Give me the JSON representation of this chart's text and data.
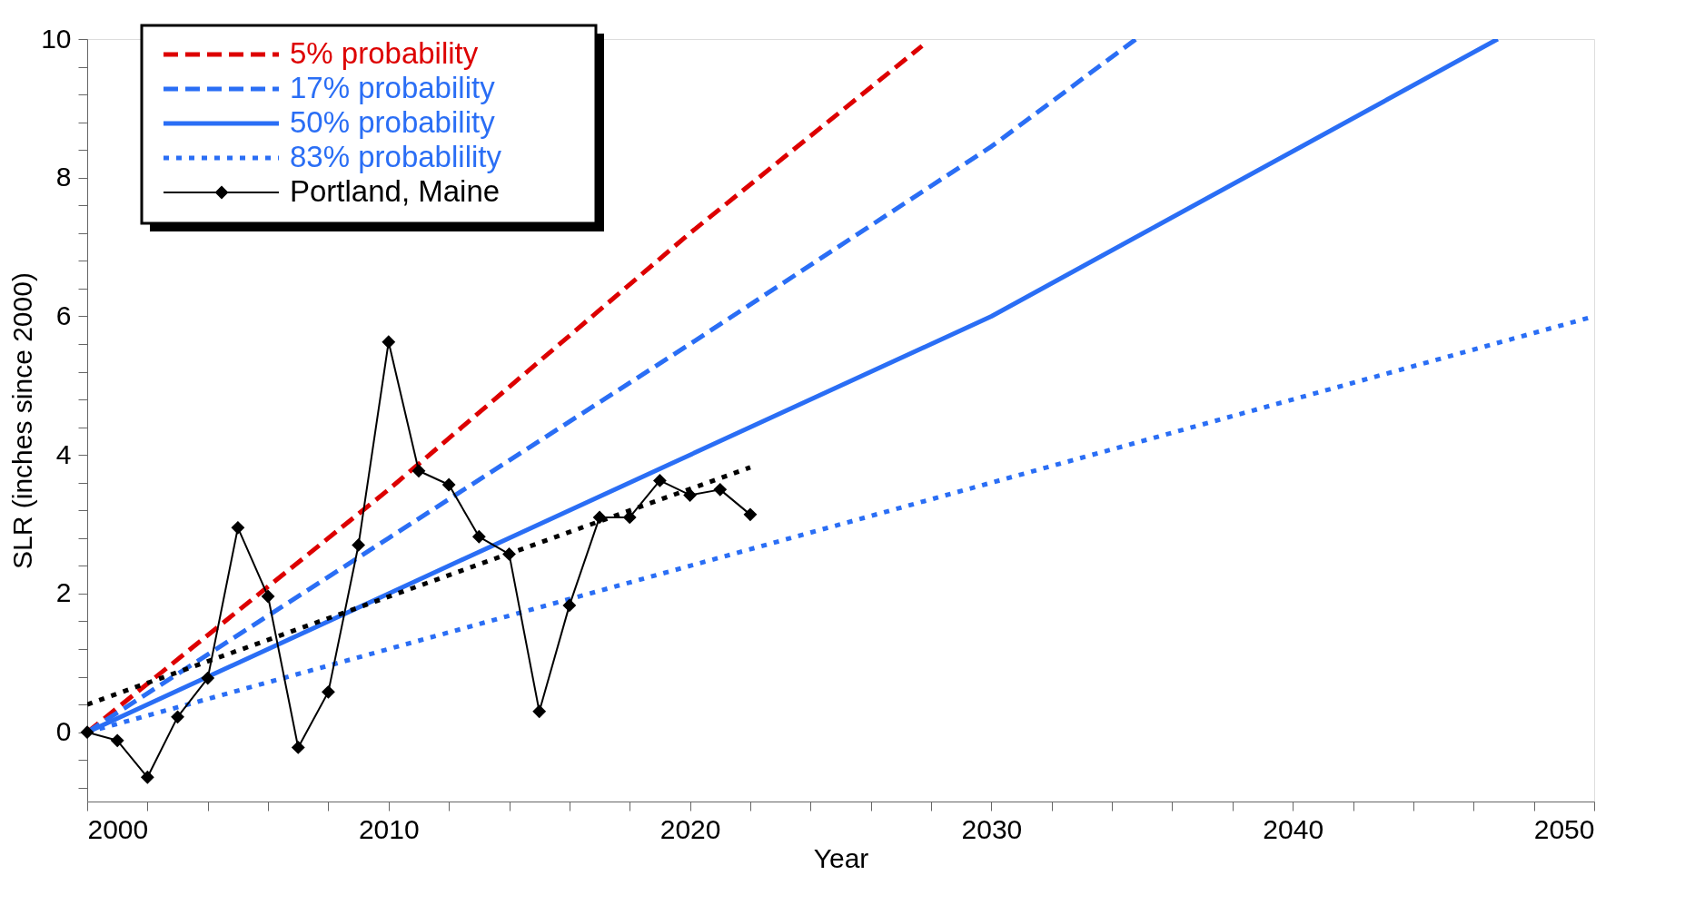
{
  "chart_data": {
    "type": "line",
    "xlabel": "Year",
    "ylabel": "SLR (inches since 2000)",
    "xlim": [
      2000,
      2050
    ],
    "ylim": [
      -1,
      10
    ],
    "xticks": [
      2000,
      {
        "value": 2002,
        "label": null
      },
      {
        "value": 2004,
        "label": null
      },
      {
        "value": 2006,
        "label": null
      },
      {
        "value": 2008,
        "label": null
      },
      2010,
      {
        "value": 2012,
        "label": null
      },
      {
        "value": 2014,
        "label": null
      },
      {
        "value": 2016,
        "label": null
      },
      {
        "value": 2018,
        "label": null
      },
      2020,
      {
        "value": 2022,
        "label": null
      },
      {
        "value": 2024,
        "label": null
      },
      {
        "value": 2026,
        "label": null
      },
      {
        "value": 2028,
        "label": null
      },
      2030,
      {
        "value": 2032,
        "label": null
      },
      {
        "value": 2034,
        "label": null
      },
      {
        "value": 2036,
        "label": null
      },
      {
        "value": 2038,
        "label": null
      },
      2040,
      {
        "value": 2042,
        "label": null
      },
      {
        "value": 2044,
        "label": null
      },
      {
        "value": 2046,
        "label": null
      },
      {
        "value": 2048,
        "label": null
      },
      2050
    ],
    "yticks": [
      {
        "value": -0.8,
        "label": null
      },
      {
        "value": -0.4,
        "label": null
      },
      0,
      {
        "value": 0.4,
        "label": null
      },
      {
        "value": 0.8,
        "label": null
      },
      {
        "value": 1.2,
        "label": null
      },
      {
        "value": 1.6,
        "label": null
      },
      2,
      {
        "value": 2.4,
        "label": null
      },
      {
        "value": 2.8,
        "label": null
      },
      {
        "value": 3.2,
        "label": null
      },
      {
        "value": 3.6,
        "label": null
      },
      4,
      {
        "value": 4.4,
        "label": null
      },
      {
        "value": 4.8,
        "label": null
      },
      {
        "value": 5.2,
        "label": null
      },
      {
        "value": 5.6,
        "label": null
      },
      6,
      {
        "value": 6.4,
        "label": null
      },
      {
        "value": 6.8,
        "label": null
      },
      {
        "value": 7.2,
        "label": null
      },
      {
        "value": 7.6,
        "label": null
      },
      8,
      {
        "value": 8.4,
        "label": null
      },
      {
        "value": 8.8,
        "label": null
      },
      {
        "value": 9.2,
        "label": null
      },
      {
        "value": 9.6,
        "label": null
      },
      10
    ],
    "grid": false,
    "legend": "top left",
    "series": [
      {
        "name": "5% probability",
        "color": "#dd0000",
        "line_style": "dashed",
        "marker": "none",
        "x": [
          2000,
          2010,
          2020,
          2027.7
        ],
        "values": [
          0,
          3.5,
          7.2,
          9.9
        ]
      },
      {
        "name": "17% probability",
        "color": "#2a6ef5",
        "line_style": "dashed",
        "marker": "none",
        "x": [
          2000,
          2010,
          2020,
          2030,
          2034.8
        ],
        "values": [
          0,
          2.8,
          5.6,
          8.45,
          10
        ]
      },
      {
        "name": "50% probability",
        "color": "#2a6ef5",
        "line_style": "solid",
        "marker": "none",
        "x": [
          2000,
          2010,
          2020,
          2030,
          2046.8
        ],
        "values": [
          0,
          2,
          4,
          6,
          10
        ]
      },
      {
        "name": "83% probablility",
        "color": "#2a6ef5",
        "line_style": "dotted",
        "marker": "none",
        "x": [
          2000,
          2010,
          2020,
          2030,
          2040,
          2050
        ],
        "values": [
          0,
          1.2,
          2.4,
          3.6,
          4.8,
          6
        ]
      },
      {
        "color": "#000000",
        "line_style": "dotted",
        "marker": "none",
        "x": [
          2000,
          2022
        ],
        "values": [
          0.4,
          3.82
        ]
      },
      {
        "name": "Portland, Maine",
        "color": "#000000",
        "line_style": "solid",
        "marker": "diamond",
        "x": [
          2000,
          2001,
          2002,
          2003,
          2004,
          2005,
          2006,
          2007,
          2008,
          2009,
          2010,
          2011,
          2012,
          2013,
          2014,
          2015,
          2016,
          2017,
          2018,
          2019,
          2020,
          2021,
          2022
        ],
        "values": [
          0,
          -0.12,
          -0.65,
          0.22,
          0.78,
          2.95,
          1.96,
          -0.22,
          0.58,
          2.7,
          5.63,
          3.77,
          3.57,
          2.82,
          2.57,
          0.3,
          1.83,
          3.1,
          3.1,
          3.63,
          3.42,
          3.5,
          3.14
        ]
      }
    ]
  }
}
